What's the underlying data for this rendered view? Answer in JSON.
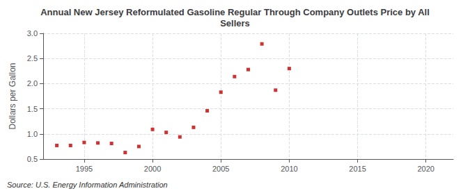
{
  "chart_data": {
    "type": "scatter",
    "title": "Annual New Jersey Reformulated Gasoline Regular Through Company Outlets Price by All\nSellers",
    "ylabel": "Dollars per Gallon",
    "annotations": [
      "Source: U.S. Energy Information Administration"
    ],
    "x": [
      1993,
      1994,
      1995,
      1996,
      1997,
      1998,
      1999,
      2000,
      2001,
      2002,
      2003,
      2004,
      2005,
      2006,
      2007,
      2008,
      2009,
      2010
    ],
    "values": [
      0.77,
      0.77,
      0.83,
      0.82,
      0.81,
      0.63,
      0.75,
      1.09,
      1.03,
      0.94,
      1.13,
      1.46,
      1.83,
      2.14,
      2.28,
      2.79,
      1.87,
      2.3
    ],
    "color": "#c00000",
    "marker": "square",
    "xlim": [
      1992,
      2022
    ],
    "xticks": [
      1995,
      2000,
      2005,
      2010,
      2015,
      2020
    ],
    "ylim": [
      0.5,
      3.0
    ],
    "yticks": [
      0.5,
      {
        "value": 1.0,
        "label": "1.0"
      },
      1.5,
      {
        "value": 2.0,
        "label": "2.0"
      },
      2.5,
      {
        "value": 3.0,
        "label": "3.0"
      }
    ],
    "grid": true
  }
}
